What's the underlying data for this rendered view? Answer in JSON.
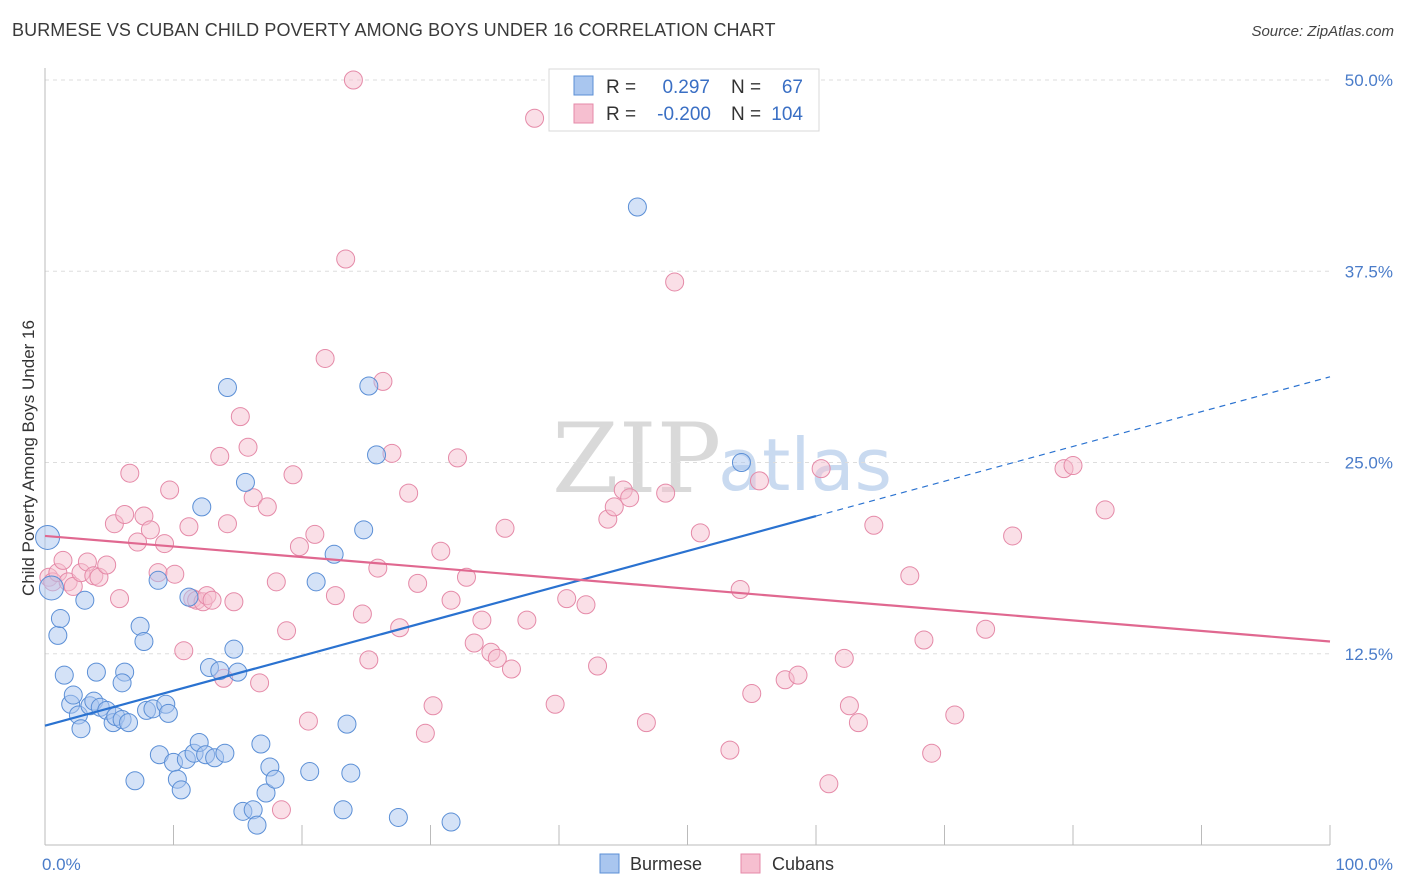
{
  "title": "BURMESE VS CUBAN CHILD POVERTY AMONG BOYS UNDER 16 CORRELATION CHART",
  "source": "Source: ZipAtlas.com",
  "colors": {
    "burmese_fill": "#a9c6ef",
    "burmese_stroke": "#5b8fd6",
    "burmese_line": "#2a72d0",
    "cubans_fill": "#f6bfd0",
    "cubans_stroke": "#e58aa8",
    "cubans_line": "#e06890",
    "grid": "#dddddd",
    "axis_text": "#4a7cc9"
  },
  "legend": {
    "rows": [
      {
        "r_label": "R =",
        "r_value": "0.297",
        "n_label": "N =",
        "n_value": "67"
      },
      {
        "r_label": "R =",
        "r_value": "-0.200",
        "n_label": "N =",
        "n_value": "104"
      }
    ]
  },
  "bottom_legend": [
    "Burmese",
    "Cubans"
  ],
  "watermark": {
    "part1": "ZIP",
    "part2": "atlas"
  },
  "chart_data": {
    "type": "scatter",
    "title": "BURMESE VS CUBAN CHILD POVERTY AMONG BOYS UNDER 16 CORRELATION CHART",
    "xlabel": "",
    "ylabel": "Child Poverty Among Boys Under 16",
    "xlim": [
      0,
      100
    ],
    "ylim": [
      0,
      50
    ],
    "x_tick_labels": [
      "0.0%",
      "100.0%"
    ],
    "y_ticks": [
      12.5,
      25.0,
      37.5,
      50.0
    ],
    "y_tick_labels": [
      "12.5%",
      "25.0%",
      "37.5%",
      "50.0%"
    ],
    "grid": true,
    "legend_position": "top-center",
    "series": [
      {
        "name": "Burmese",
        "r": 0.297,
        "n": 67,
        "trend": {
          "x0": 0,
          "y0": 7.8,
          "x1": 60,
          "y1": 21.5,
          "dashed_to_x": 100,
          "dashed_to_y": 30.6
        },
        "points": [
          [
            0.2,
            20.1
          ],
          [
            0.5,
            16.8
          ],
          [
            1.0,
            13.7
          ],
          [
            1.2,
            14.8
          ],
          [
            1.5,
            11.1
          ],
          [
            2.0,
            9.2
          ],
          [
            2.2,
            9.8
          ],
          [
            2.6,
            8.5
          ],
          [
            2.8,
            7.6
          ],
          [
            3.1,
            16.0
          ],
          [
            3.5,
            9.1
          ],
          [
            3.8,
            9.4
          ],
          [
            4.0,
            11.3
          ],
          [
            4.3,
            9.0
          ],
          [
            4.8,
            8.8
          ],
          [
            5.3,
            8.0
          ],
          [
            5.5,
            8.4
          ],
          [
            6.0,
            8.2
          ],
          [
            6.2,
            11.3
          ],
          [
            6.5,
            8.0
          ],
          [
            6.0,
            10.6
          ],
          [
            7.0,
            4.2
          ],
          [
            7.4,
            14.3
          ],
          [
            7.7,
            13.3
          ],
          [
            7.9,
            8.8
          ],
          [
            8.4,
            8.9
          ],
          [
            8.9,
            5.9
          ],
          [
            8.8,
            17.3
          ],
          [
            9.4,
            9.2
          ],
          [
            9.6,
            8.6
          ],
          [
            10.0,
            5.4
          ],
          [
            10.3,
            4.3
          ],
          [
            10.6,
            3.6
          ],
          [
            11.0,
            5.6
          ],
          [
            11.2,
            16.2
          ],
          [
            11.6,
            6.0
          ],
          [
            12.0,
            6.7
          ],
          [
            12.2,
            22.1
          ],
          [
            12.5,
            5.9
          ],
          [
            12.8,
            11.6
          ],
          [
            13.2,
            5.7
          ],
          [
            13.6,
            11.4
          ],
          [
            14.0,
            6.0
          ],
          [
            14.2,
            29.9
          ],
          [
            14.7,
            12.8
          ],
          [
            15.0,
            11.3
          ],
          [
            15.4,
            2.2
          ],
          [
            15.6,
            23.7
          ],
          [
            16.2,
            2.3
          ],
          [
            16.5,
            1.3
          ],
          [
            16.8,
            6.6
          ],
          [
            17.2,
            3.4
          ],
          [
            17.5,
            5.1
          ],
          [
            17.9,
            4.3
          ],
          [
            20.6,
            4.8
          ],
          [
            21.1,
            17.2
          ],
          [
            23.2,
            2.3
          ],
          [
            23.5,
            7.9
          ],
          [
            23.8,
            4.7
          ],
          [
            24.8,
            20.6
          ],
          [
            25.2,
            30.0
          ],
          [
            25.8,
            25.5
          ],
          [
            27.5,
            1.8
          ],
          [
            31.6,
            1.5
          ],
          [
            46.1,
            41.7
          ],
          [
            54.2,
            25.0
          ],
          [
            22.5,
            19.0
          ]
        ]
      },
      {
        "name": "Cubans",
        "r": -0.2,
        "n": 104,
        "trend": {
          "x0": 0,
          "y0": 20.2,
          "x1": 100,
          "y1": 13.3
        },
        "points": [
          [
            0.3,
            17.5
          ],
          [
            0.6,
            17.2
          ],
          [
            1.0,
            17.8
          ],
          [
            1.4,
            18.6
          ],
          [
            1.8,
            17.2
          ],
          [
            2.2,
            16.9
          ],
          [
            2.8,
            17.8
          ],
          [
            3.3,
            18.5
          ],
          [
            3.8,
            17.6
          ],
          [
            4.2,
            17.5
          ],
          [
            4.8,
            18.3
          ],
          [
            5.4,
            21.0
          ],
          [
            5.8,
            16.1
          ],
          [
            6.2,
            21.6
          ],
          [
            6.6,
            24.3
          ],
          [
            7.2,
            19.8
          ],
          [
            7.7,
            21.5
          ],
          [
            8.2,
            20.6
          ],
          [
            8.8,
            17.8
          ],
          [
            9.3,
            19.7
          ],
          [
            9.7,
            23.2
          ],
          [
            10.1,
            17.7
          ],
          [
            10.8,
            12.7
          ],
          [
            11.2,
            20.8
          ],
          [
            11.5,
            16.1
          ],
          [
            11.8,
            16.0
          ],
          [
            12.3,
            15.9
          ],
          [
            12.6,
            16.3
          ],
          [
            13.0,
            16.0
          ],
          [
            13.6,
            25.4
          ],
          [
            13.9,
            10.9
          ],
          [
            14.2,
            21.0
          ],
          [
            14.7,
            15.9
          ],
          [
            15.2,
            28.0
          ],
          [
            15.8,
            26.0
          ],
          [
            16.2,
            22.7
          ],
          [
            16.7,
            10.6
          ],
          [
            17.3,
            22.1
          ],
          [
            18.0,
            17.2
          ],
          [
            18.4,
            2.3
          ],
          [
            18.8,
            14.0
          ],
          [
            19.3,
            24.2
          ],
          [
            19.8,
            19.5
          ],
          [
            20.5,
            8.1
          ],
          [
            21.0,
            20.3
          ],
          [
            21.8,
            31.8
          ],
          [
            22.6,
            16.3
          ],
          [
            23.4,
            38.3
          ],
          [
            24.0,
            50.0
          ],
          [
            24.7,
            15.1
          ],
          [
            25.2,
            12.1
          ],
          [
            25.9,
            18.1
          ],
          [
            26.3,
            30.3
          ],
          [
            27.0,
            25.6
          ],
          [
            27.6,
            14.2
          ],
          [
            28.3,
            23.0
          ],
          [
            29.0,
            17.1
          ],
          [
            29.6,
            7.3
          ],
          [
            30.2,
            9.1
          ],
          [
            30.8,
            19.2
          ],
          [
            31.6,
            16.0
          ],
          [
            32.1,
            25.3
          ],
          [
            32.8,
            17.5
          ],
          [
            33.4,
            13.2
          ],
          [
            34.0,
            14.7
          ],
          [
            34.7,
            12.6
          ],
          [
            35.2,
            12.2
          ],
          [
            35.8,
            20.7
          ],
          [
            36.3,
            11.5
          ],
          [
            37.5,
            14.7
          ],
          [
            38.1,
            47.5
          ],
          [
            39.7,
            9.2
          ],
          [
            40.6,
            16.1
          ],
          [
            42.1,
            15.7
          ],
          [
            43.0,
            11.7
          ],
          [
            43.8,
            21.3
          ],
          [
            44.3,
            22.1
          ],
          [
            45.0,
            23.2
          ],
          [
            45.5,
            22.7
          ],
          [
            46.8,
            8.0
          ],
          [
            48.3,
            23.0
          ],
          [
            49.0,
            36.8
          ],
          [
            51.0,
            20.4
          ],
          [
            53.3,
            6.2
          ],
          [
            54.1,
            16.7
          ],
          [
            55.0,
            9.9
          ],
          [
            55.6,
            23.8
          ],
          [
            57.6,
            10.8
          ],
          [
            58.6,
            11.1
          ],
          [
            60.4,
            24.6
          ],
          [
            61.0,
            4.0
          ],
          [
            62.2,
            12.2
          ],
          [
            62.6,
            9.1
          ],
          [
            63.3,
            8.0
          ],
          [
            64.5,
            20.9
          ],
          [
            67.3,
            17.6
          ],
          [
            68.4,
            13.4
          ],
          [
            69.0,
            6.0
          ],
          [
            70.8,
            8.5
          ],
          [
            73.2,
            14.1
          ],
          [
            75.3,
            20.2
          ],
          [
            79.3,
            24.6
          ],
          [
            80.0,
            24.8
          ],
          [
            82.5,
            21.9
          ]
        ]
      }
    ]
  }
}
